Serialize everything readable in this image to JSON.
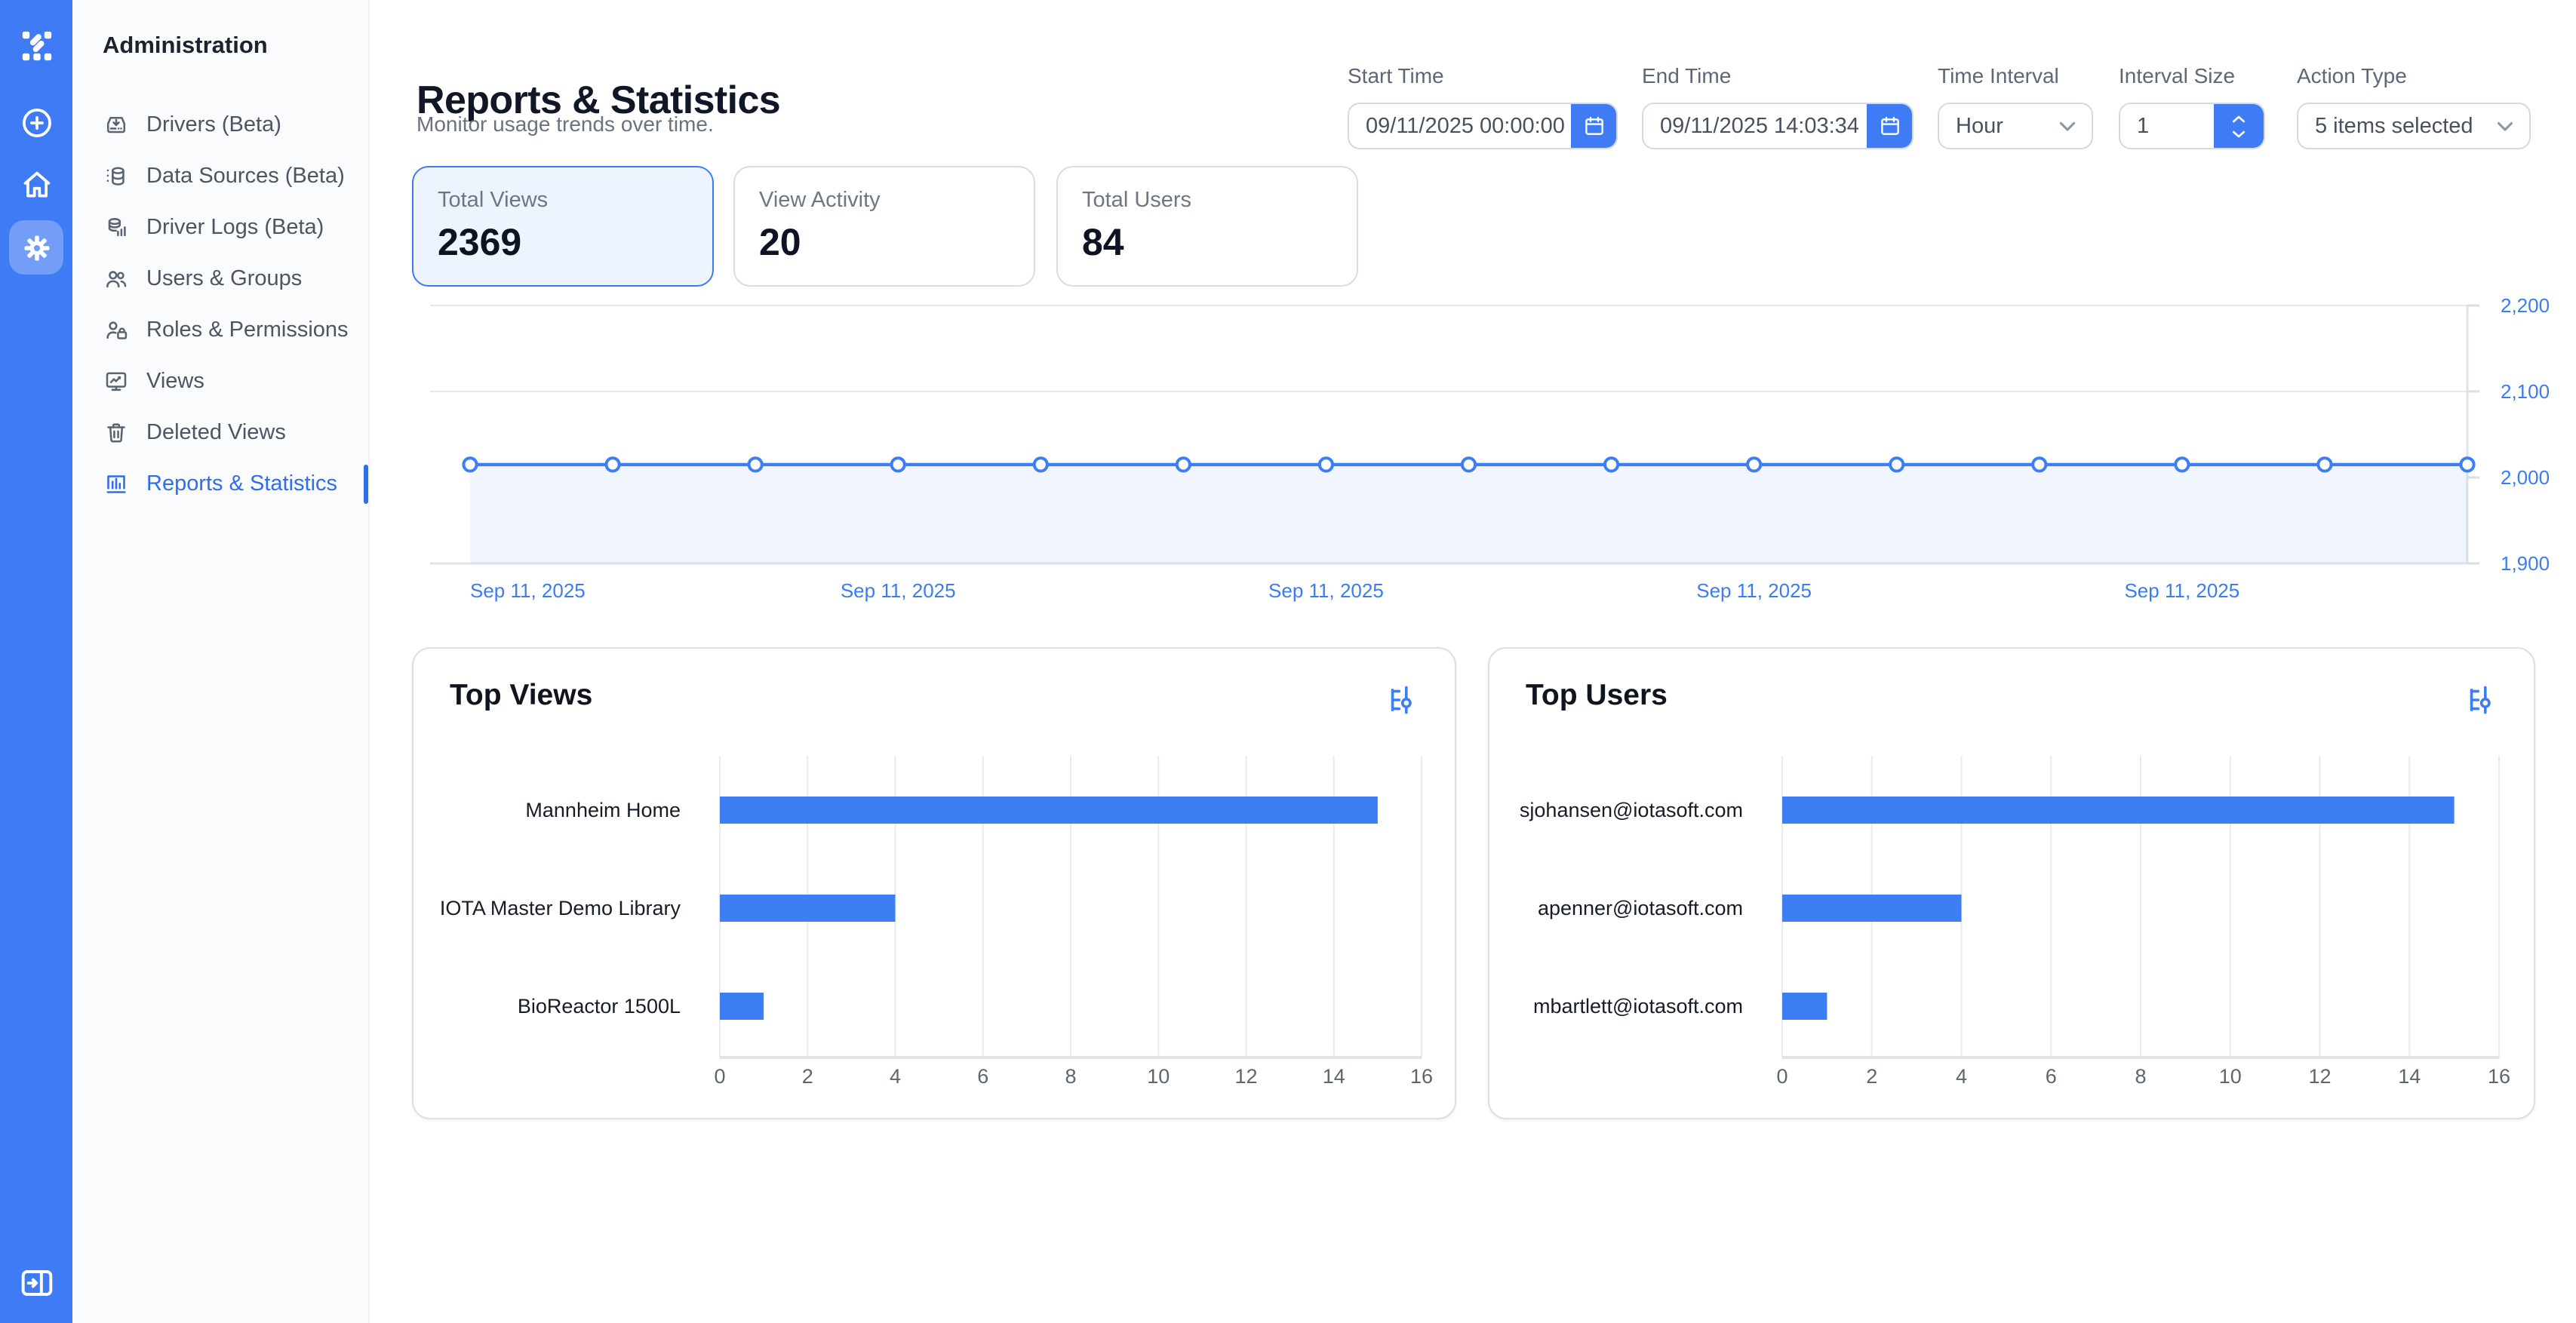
{
  "colors": {
    "accent": "#3e7bf4",
    "link": "#2f6cf0",
    "chart_blue": "#3d7ff2",
    "axis_label_blue": "#3b7cf3",
    "selected_card_bg": "#eef4fe",
    "area_fill": "rgba(61,127,242,0.08)"
  },
  "rail": {
    "icons": [
      {
        "name": "logo-icon"
      },
      {
        "name": "plus-circle-icon"
      },
      {
        "name": "home-icon"
      },
      {
        "name": "gear-icon",
        "active": true
      }
    ],
    "bottom_icon": "collapse-sidebar-icon"
  },
  "sidebar": {
    "title": "Administration",
    "items": [
      {
        "label": "Drivers (Beta)",
        "icon": "download-tray-icon",
        "active": false
      },
      {
        "label": "Data Sources (Beta)",
        "icon": "database-icon",
        "active": false
      },
      {
        "label": "Driver Logs (Beta)",
        "icon": "database-logs-icon",
        "active": false
      },
      {
        "label": "Users & Groups",
        "icon": "users-icon",
        "active": false
      },
      {
        "label": "Roles & Permissions",
        "icon": "user-lock-icon",
        "active": false
      },
      {
        "label": "Views",
        "icon": "monitor-chart-icon",
        "active": false
      },
      {
        "label": "Deleted Views",
        "icon": "trash-icon",
        "active": false
      },
      {
        "label": "Reports & Statistics",
        "icon": "bar-chart-icon",
        "active": true
      }
    ]
  },
  "header": {
    "title": "Reports & Statistics",
    "subtitle": "Monitor usage trends over time."
  },
  "filters": {
    "start_time": {
      "label": "Start Time",
      "value": "09/11/2025 00:00:00",
      "icon": "calendar-icon"
    },
    "end_time": {
      "label": "End Time",
      "value": "09/11/2025 14:03:34",
      "icon": "calendar-icon"
    },
    "time_interval": {
      "label": "Time Interval",
      "value": "Hour",
      "icon": "chevron-down-icon"
    },
    "interval_size": {
      "label": "Interval Size",
      "value": "1",
      "icons": [
        "stepper-up-icon",
        "stepper-down-icon"
      ]
    },
    "action_type": {
      "label": "Action Type",
      "value": "5 items selected",
      "icon": "chevron-down-icon"
    }
  },
  "stats": [
    {
      "label": "Total Views",
      "value": "2369",
      "selected": true
    },
    {
      "label": "View Activity",
      "value": "20",
      "selected": false
    },
    {
      "label": "Total Users",
      "value": "84",
      "selected": false
    }
  ],
  "chart_data": [
    {
      "id": "usage_trend",
      "type": "area",
      "title": "",
      "values": [
        2015,
        2015,
        2015,
        2015,
        2015,
        2015,
        2015,
        2015,
        2015,
        2015,
        2015,
        2015,
        2015,
        2015,
        2015
      ],
      "x_tick_labels": [
        "Sep 11, 2025",
        "Sep 11, 2025",
        "Sep 11, 2025",
        "Sep 11, 2025",
        "Sep 11, 2025"
      ],
      "label_every_nth_point": 3,
      "ylim": [
        1900,
        2200
      ],
      "yticks": [
        1900,
        2000,
        2100,
        2200
      ],
      "gridline_yticks": [
        2100,
        2200
      ],
      "legend": "none",
      "marker": "open-circle"
    },
    {
      "id": "top_views",
      "type": "bar",
      "title": "Top Views",
      "orientation": "horizontal",
      "categories": [
        "Mannheim Home",
        "IOTA Master Demo Library",
        "BioReactor 1500L"
      ],
      "values": [
        15,
        4,
        1
      ],
      "xlim": [
        0,
        16
      ],
      "xticks": [
        0,
        2,
        4,
        6,
        8,
        10,
        12,
        14,
        16
      ],
      "grid": true
    },
    {
      "id": "top_users",
      "type": "bar",
      "title": "Top Users",
      "orientation": "horizontal",
      "categories": [
        "sjohansen@iotasoft.com",
        "apenner@iotasoft.com",
        "mbartlett@iotasoft.com"
      ],
      "values": [
        15,
        4,
        1
      ],
      "xlim": [
        0,
        16
      ],
      "xticks": [
        0,
        2,
        4,
        6,
        8,
        10,
        12,
        14,
        16
      ],
      "grid": true
    }
  ]
}
